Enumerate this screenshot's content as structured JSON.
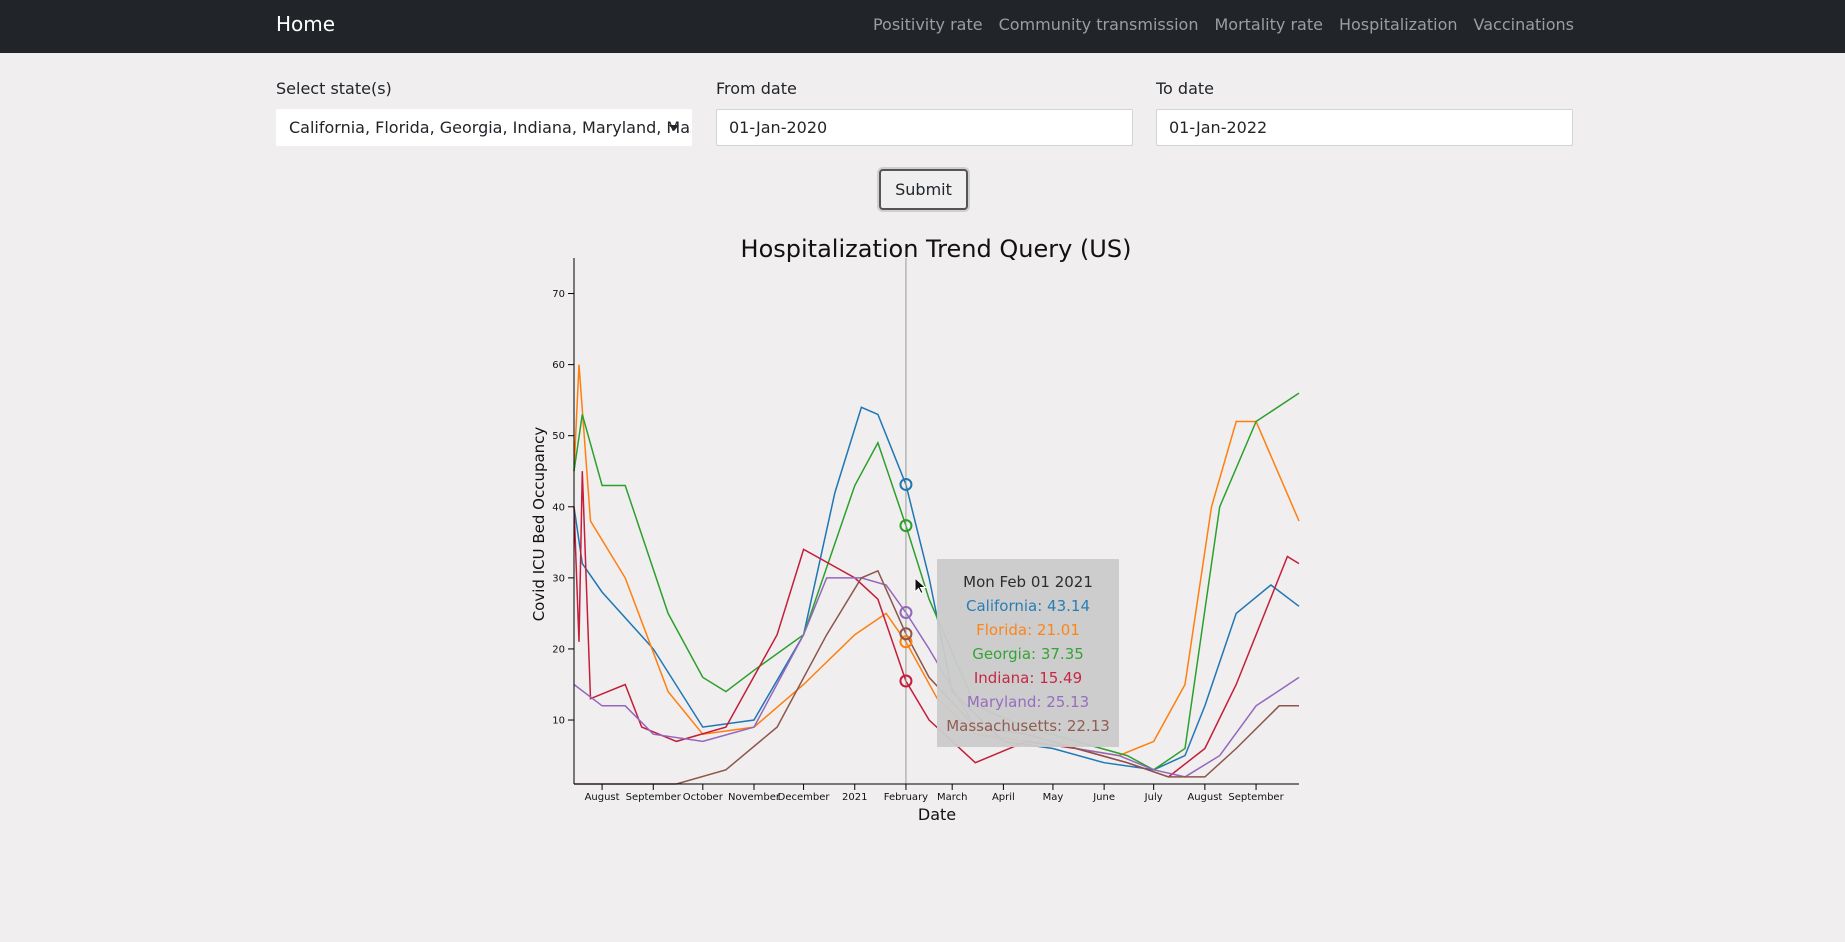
{
  "navbar": {
    "brand": "Home",
    "links": [
      "Positivity rate",
      "Community transmission",
      "Mortality rate",
      "Hospitalization",
      "Vaccinations"
    ]
  },
  "form": {
    "states_label": "Select state(s)",
    "states_value": "California, Florida, Georgia, Indiana, Maryland, Massachusetts",
    "from_label": "From date",
    "from_value": "01-Jan-2020",
    "to_label": "To date",
    "to_value": "01-Jan-2022",
    "submit_label": "Submit"
  },
  "tooltip": {
    "date": "Mon Feb 01 2021",
    "lines": [
      "California: 43.14",
      "Florida: 21.01",
      "Georgia: 37.35",
      "Indiana: 15.49",
      "Maryland: 25.13",
      "Massachusetts: 22.13"
    ]
  },
  "colors": {
    "California": "#1f77b4",
    "Florida": "#ff7f0e",
    "Georgia": "#2ca02c",
    "Indiana": "#c41e3a",
    "Maryland": "#9467bd",
    "Massachusetts": "#8c564b"
  },
  "chart_data": {
    "type": "line",
    "title": "Hospitalization Trend Query (US)",
    "xlabel": "Date",
    "ylabel": "Covid ICU Bed Occupancy",
    "x_ticks": [
      "August",
      "September",
      "October",
      "November",
      "December",
      "2021",
      "February",
      "March",
      "April",
      "May",
      "June",
      "July",
      "August",
      "September"
    ],
    "x_range": [
      "2020-07-15",
      "2021-09-27"
    ],
    "y_ticks": [
      10,
      20,
      30,
      40,
      50,
      60,
      70
    ],
    "ylim": [
      1,
      75
    ],
    "hover_date": "2021-02-01",
    "grid": false,
    "series": [
      {
        "name": "California",
        "x": [
          "2020-07-15",
          "2020-07-20",
          "2020-08-01",
          "2020-09-01",
          "2020-10-01",
          "2020-11-01",
          "2020-12-01",
          "2020-12-20",
          "2021-01-05",
          "2021-01-15",
          "2021-02-01",
          "2021-02-15",
          "2021-03-01",
          "2021-04-01",
          "2021-05-01",
          "2021-06-01",
          "2021-07-01",
          "2021-07-20",
          "2021-08-01",
          "2021-08-20",
          "2021-09-10",
          "2021-09-27"
        ],
        "values": [
          40,
          32,
          28,
          20,
          9,
          10,
          22,
          42,
          54,
          53,
          43.14,
          30,
          14,
          7,
          6,
          4,
          3,
          5,
          12,
          25,
          29,
          26
        ]
      },
      {
        "name": "Florida",
        "x": [
          "2020-07-15",
          "2020-07-18",
          "2020-07-25",
          "2020-08-15",
          "2020-09-10",
          "2020-10-01",
          "2020-11-01",
          "2020-12-01",
          "2021-01-01",
          "2021-01-20",
          "2021-02-01",
          "2021-02-20",
          "2021-03-15",
          "2021-04-15",
          "2021-05-15",
          "2021-06-10",
          "2021-07-01",
          "2021-07-20",
          "2021-08-05",
          "2021-08-20",
          "2021-09-01",
          "2021-09-27"
        ],
        "values": [
          45,
          60,
          38,
          30,
          14,
          8,
          9,
          15,
          22,
          25,
          21.01,
          13,
          8,
          7,
          6,
          5,
          7,
          15,
          40,
          52,
          52,
          38
        ]
      },
      {
        "name": "Georgia",
        "x": [
          "2020-07-15",
          "2020-07-20",
          "2020-08-01",
          "2020-08-15",
          "2020-09-10",
          "2020-10-01",
          "2020-10-15",
          "2020-11-01",
          "2020-12-01",
          "2021-01-01",
          "2021-01-15",
          "2021-02-01",
          "2021-02-15",
          "2021-03-15",
          "2021-04-15",
          "2021-05-15",
          "2021-06-15",
          "2021-07-01",
          "2021-07-20",
          "2021-08-10",
          "2021-09-01",
          "2021-09-27"
        ],
        "values": [
          45,
          53,
          43,
          43,
          25,
          16,
          14,
          17,
          22,
          43,
          49,
          37.35,
          27,
          12,
          9,
          7,
          5,
          3,
          6,
          40,
          52,
          56
        ]
      },
      {
        "name": "Indiana",
        "x": [
          "2020-07-15",
          "2020-07-18",
          "2020-07-20",
          "2020-07-25",
          "2020-08-15",
          "2020-08-25",
          "2020-09-15",
          "2020-10-15",
          "2020-11-15",
          "2020-12-01",
          "2021-01-01",
          "2021-01-15",
          "2021-02-01",
          "2021-02-15",
          "2021-03-15",
          "2021-04-15",
          "2021-05-15",
          "2021-06-15",
          "2021-07-10",
          "2021-08-01",
          "2021-08-20",
          "2021-09-20",
          "2021-09-27"
        ],
        "values": [
          40,
          21,
          45,
          13,
          15,
          9,
          7,
          9,
          22,
          34,
          30,
          27,
          15.49,
          10,
          4,
          7,
          6,
          4,
          2,
          6,
          15,
          33,
          32
        ]
      },
      {
        "name": "Maryland",
        "x": [
          "2020-07-15",
          "2020-08-01",
          "2020-08-15",
          "2020-09-01",
          "2020-10-01",
          "2020-11-01",
          "2020-12-01",
          "2020-12-15",
          "2021-01-05",
          "2021-01-20",
          "2021-02-01",
          "2021-02-15",
          "2021-03-15",
          "2021-04-15",
          "2021-05-15",
          "2021-06-10",
          "2021-07-01",
          "2021-07-20",
          "2021-08-10",
          "2021-09-01",
          "2021-09-27"
        ],
        "values": [
          15,
          12,
          12,
          8,
          7,
          9,
          22,
          30,
          30,
          29,
          25.13,
          20,
          9,
          8,
          6,
          5,
          3,
          2,
          5,
          12,
          16
        ]
      },
      {
        "name": "Massachusetts",
        "x": [
          "2020-07-15",
          "2020-08-15",
          "2020-09-15",
          "2020-10-15",
          "2020-11-15",
          "2020-12-15",
          "2021-01-05",
          "2021-01-15",
          "2021-02-01",
          "2021-02-15",
          "2021-03-15",
          "2021-04-15",
          "2021-05-15",
          "2021-06-15",
          "2021-07-10",
          "2021-08-01",
          "2021-08-20",
          "2021-09-15",
          "2021-09-27"
        ],
        "values": [
          1,
          1,
          1,
          3,
          9,
          22,
          30,
          31,
          22.13,
          16,
          9,
          8,
          6,
          4,
          2,
          2,
          6,
          12,
          12
        ]
      }
    ]
  }
}
